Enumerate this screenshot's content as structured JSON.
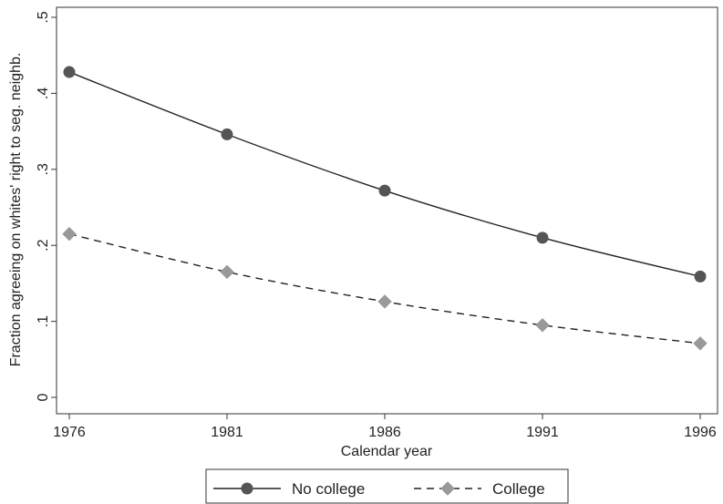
{
  "chart_data": {
    "type": "line",
    "title": "",
    "xlabel": "Calendar year",
    "ylabel": "Fraction agreeing on whites' right to seg. neighb.",
    "x": [
      1976,
      1981,
      1986,
      1991,
      1996
    ],
    "xlim": [
      1976,
      1996
    ],
    "ylim": [
      0,
      0.5
    ],
    "xticks": [
      {
        "value": 1976,
        "label": "1976"
      },
      {
        "value": 1981,
        "label": "1981"
      },
      {
        "value": 1986,
        "label": "1986"
      },
      {
        "value": 1991,
        "label": "1991"
      },
      {
        "value": 1996,
        "label": "1996"
      }
    ],
    "yticks": [
      {
        "value": 0,
        "label": "0"
      },
      {
        "value": 0.1,
        "label": ".1"
      },
      {
        "value": 0.2,
        "label": ".2"
      },
      {
        "value": 0.3,
        "label": ".3"
      },
      {
        "value": 0.4,
        "label": ".4"
      },
      {
        "value": 0.5,
        "label": ".5"
      }
    ],
    "grid": false,
    "legend_position": "bottom",
    "series": [
      {
        "name": "No college",
        "values": [
          0.428,
          0.346,
          0.272,
          0.21,
          0.159
        ],
        "color": "#555555",
        "line_style": "solid",
        "marker": "circle"
      },
      {
        "name": "College",
        "values": [
          0.215,
          0.165,
          0.126,
          0.095,
          0.071
        ],
        "color": "#999999",
        "line_style": "dashed",
        "marker": "diamond"
      }
    ]
  }
}
